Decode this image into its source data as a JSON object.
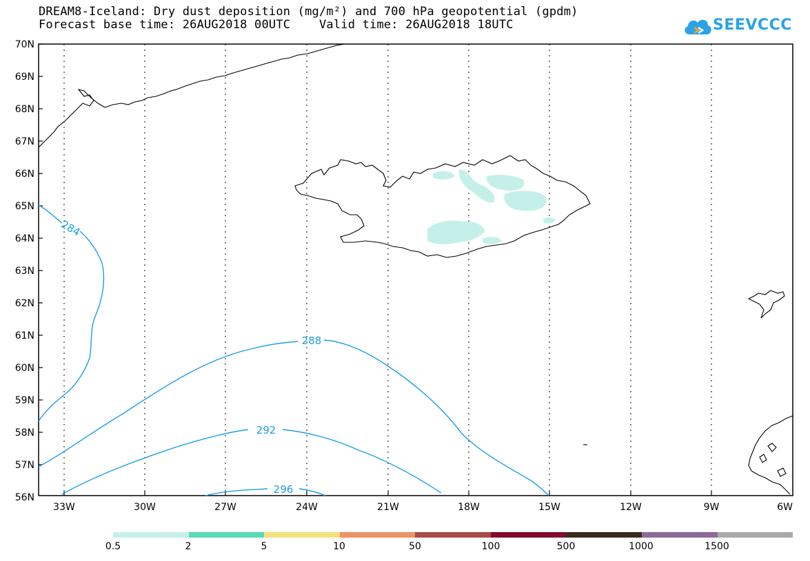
{
  "header": {
    "line1": "DREAM8-Iceland: Dry dust deposition (mg/m²) and 700 hPa geopotential (gpdm)",
    "line2": "Forecast base time: 26AUG2018 00UTC    Valid time: 26AUG2018 18UTC"
  },
  "logo": {
    "text": "SEEVCCC",
    "icon": "cloud-icon",
    "color": "#2aa3e6"
  },
  "map": {
    "lat_labels": [
      "70N",
      "69N",
      "68N",
      "67N",
      "66N",
      "65N",
      "64N",
      "63N",
      "62N",
      "61N",
      "60N",
      "59N",
      "58N",
      "57N",
      "56N"
    ],
    "lon_labels": [
      "33W",
      "30W",
      "27W",
      "24W",
      "21W",
      "18W",
      "15W",
      "12W",
      "9W",
      "6W"
    ],
    "contour_color": "#1a9ee8",
    "contour_labels": [
      "284",
      "288",
      "292",
      "296"
    ],
    "dust_color": "#c5f0ea"
  },
  "legend": {
    "labels": [
      "0.5",
      "2",
      "5",
      "10",
      "50",
      "100",
      "500",
      "1000",
      "1500"
    ],
    "colors": [
      "#c5f0ea",
      "#5adbb5",
      "#f5e27a",
      "#ee9266",
      "#a94b46",
      "#820c2d",
      "#3a2c20",
      "#8e6a9a",
      "#aaaaaa"
    ]
  }
}
